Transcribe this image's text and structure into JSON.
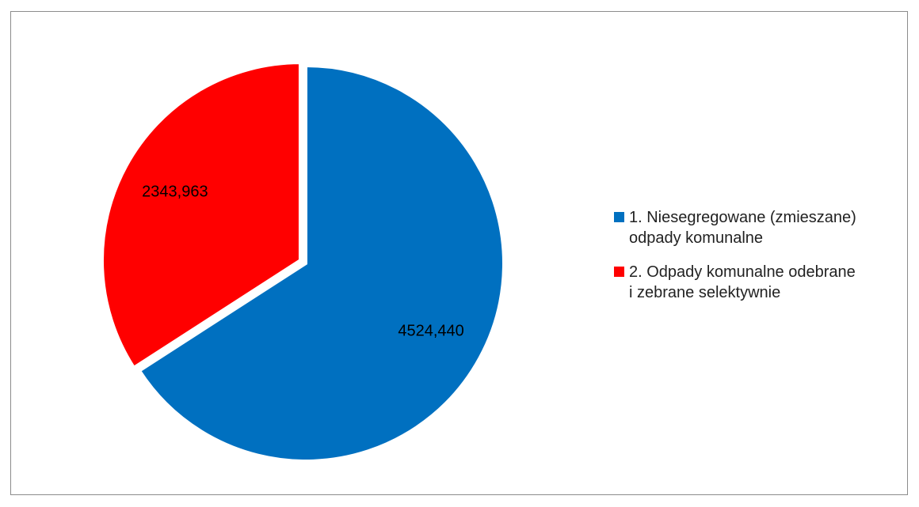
{
  "chart_data": {
    "type": "pie",
    "title": "",
    "series": [
      {
        "values": [
          4524.44,
          2343.963
        ]
      }
    ],
    "slices": [
      {
        "label": "1. Niesegregowane (zmieszane) odpady komunalne",
        "legend_lines": "1. Niesegregowane (zmieszane)\nodpady komunalne",
        "value": 4524.44,
        "data_label": "4524,440",
        "color": "#0070C0",
        "exploded": false
      },
      {
        "label": "2. Odpady komunalne odebrane i zebrane selektywnie",
        "legend_lines": "2. Odpady komunalne odebrane\ni  zebrane selektywnie",
        "value": 2343.963,
        "data_label": "2343,963",
        "color": "#FF0000",
        "exploded": true
      }
    ],
    "start_angle": "12 o'clock",
    "direction": "clockwise",
    "legend_position": "right"
  }
}
